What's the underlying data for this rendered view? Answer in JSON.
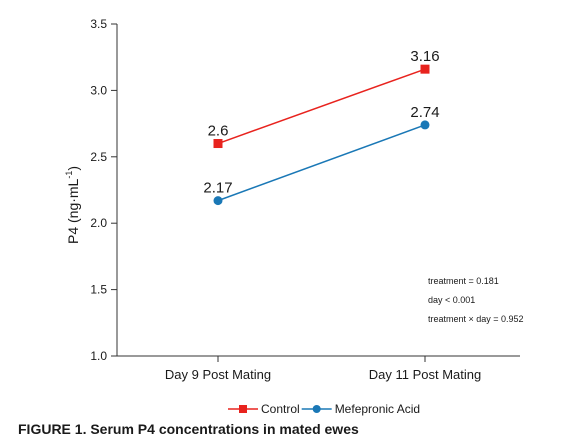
{
  "caption": "FIGURE 1. Serum P4 concentrations in mated ewes",
  "chart_data": {
    "type": "line",
    "categories": [
      "Day 9 Post Mating",
      "Day 11 Post Mating"
    ],
    "series": [
      {
        "name": "Control",
        "values": [
          2.6,
          3.16
        ],
        "labels": [
          "2.6",
          "3.16"
        ],
        "color": "#e8231e",
        "marker": "square"
      },
      {
        "name": "Mefepronic Acid",
        "values": [
          2.17,
          2.74
        ],
        "labels": [
          "2.17",
          "2.74"
        ],
        "color": "#1a78b6",
        "marker": "circle"
      }
    ],
    "ylabel": "P4 (ng·mL",
    "ylabel_superscript": "-1",
    "ylabel_close": ")",
    "ylim": [
      1.0,
      3.5
    ],
    "yticks": [
      {
        "value": 1.0,
        "label": "1.0"
      },
      {
        "value": 1.5,
        "label": "1.5"
      },
      {
        "value": 2.0,
        "label": "2.0"
      },
      {
        "value": 2.5,
        "label": "2.5"
      },
      {
        "value": 3.0,
        "label": "3.0"
      },
      {
        "value": 3.5,
        "label": "3.5"
      }
    ],
    "grid": false,
    "legend_position": "bottom",
    "annotations": [
      "treatment = 0.181",
      "day < 0.001",
      "treatment × day = 0.952"
    ]
  }
}
